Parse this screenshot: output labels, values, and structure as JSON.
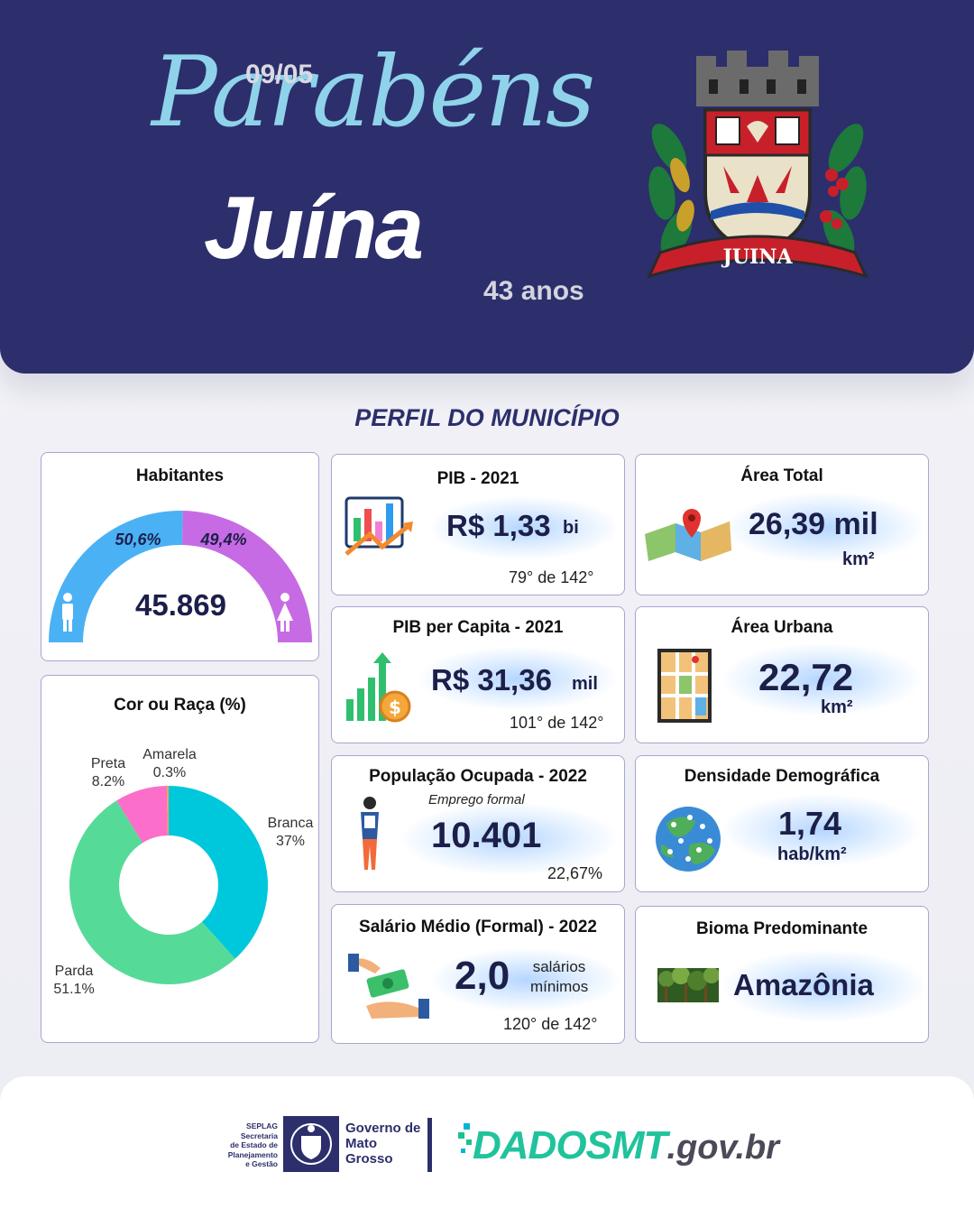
{
  "header": {
    "date": "09/05",
    "greeting": "Parabéns",
    "city": "Juína",
    "years": "43 anos",
    "coat_label": "JUINA"
  },
  "section_title": "PERFIL DO MUNICÍPIO",
  "habitantes": {
    "title": "Habitantes",
    "total": "45.869",
    "male_pct_label": "50,6%",
    "female_pct_label": "49,4%"
  },
  "pib": {
    "title": "PIB - 2021",
    "value": "R$ 1,33",
    "unit": "bi",
    "rank": "79° de 142°"
  },
  "pib_capita": {
    "title": "PIB per Capita - 2021",
    "value": "R$ 31,36",
    "unit": "mil",
    "rank": "101° de 142°"
  },
  "populacao": {
    "title": "População  Ocupada - 2022",
    "subtitle": "Emprego formal",
    "value": "10.401",
    "rank": "22,67%"
  },
  "salario": {
    "title": "Salário Médio (Formal) - 2022",
    "value": "2,0",
    "unit_line1": "salários",
    "unit_line2": "mínimos",
    "rank": "120° de 142°"
  },
  "area_total": {
    "title": "Área Total",
    "value": "26,39 mil",
    "unit": "km²"
  },
  "area_urbana": {
    "title": "Área Urbana",
    "value": "22,72",
    "unit": "km²"
  },
  "densidade": {
    "title": "Densidade Demográfica",
    "value": "1,74",
    "unit": "hab/km²"
  },
  "bioma": {
    "title": "Bioma Predominante",
    "value": "Amazônia"
  },
  "footer": {
    "seplag_line1": "SEPLAG",
    "seplag_line2": "Secretaria",
    "seplag_line3": "de Estado de",
    "seplag_line4": "Planejamento",
    "seplag_line5": "e Gestão",
    "gov_line1": "Governo de",
    "gov_line2": "Mato",
    "gov_line3": "Grosso",
    "dados_brand": "DADOSMT",
    "dados_domain": ".gov.br"
  },
  "colors": {
    "navy": "#2c2f6b",
    "male": "#4bb1f5",
    "female": "#c66be3",
    "branca": "#00c8dc",
    "parda": "#56da98",
    "preta": "#fb6ec9",
    "amarela": "#f9a154"
  },
  "chart_data": [
    {
      "type": "pie",
      "title": "Habitantes",
      "categories": [
        "Homens",
        "Mulheres"
      ],
      "values": [
        50.6,
        49.4
      ],
      "labels": [
        "50,6%",
        "49,4%"
      ],
      "total_label": "45.869"
    },
    {
      "type": "pie",
      "title": "Cor ou Raça (%)",
      "categories": [
        "Branca",
        "Parda",
        "Preta",
        "Amarela"
      ],
      "values": [
        37,
        51.1,
        8.2,
        0.3
      ],
      "labels": [
        "37%",
        "51.1%",
        "8.2%",
        "0.3%"
      ]
    }
  ]
}
